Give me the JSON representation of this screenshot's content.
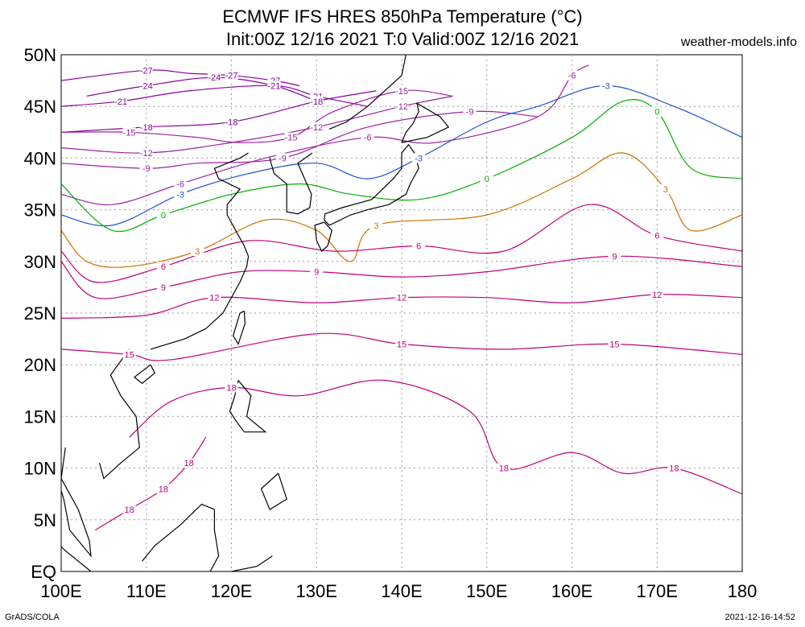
{
  "header": {
    "title_line1": "ECMWF IFS HRES 850hPa Temperature (°C)",
    "title_line2": "Init:00Z 12/16 2021 T:0 Valid:00Z 12/16 2021",
    "brand": "weather-models.info"
  },
  "footer": {
    "left": "GrADS/COLA",
    "right": "2021-12-16-14:52"
  },
  "axes": {
    "lon_ticks": [
      "100E",
      "110E",
      "120E",
      "130E",
      "140E",
      "150E",
      "160E",
      "170E",
      "180"
    ],
    "lat_ticks": [
      "EQ",
      "5N",
      "10N",
      "15N",
      "20N",
      "25N",
      "30N",
      "35N",
      "40N",
      "45N",
      "50N"
    ]
  },
  "colors": {
    "coast": "#000000",
    "grid": "#9a9a9a",
    "very_cold": "#8b00a0",
    "cold": "#a020a0",
    "minus3": "#2050d0",
    "zero": "#00b000",
    "plus3": "#d07000",
    "warm": "#c0007a"
  },
  "contours": [
    {
      "label": "-27",
      "color_key": "very_cold",
      "lat": [
        47.5,
        48.5,
        48.2,
        48.0,
        47.5,
        47.0
      ],
      "lon": [
        100,
        110,
        115,
        120,
        125,
        128
      ]
    },
    {
      "label": "-24",
      "color_key": "very_cold",
      "lat": [
        46.0,
        47.0,
        47.8,
        47.0,
        45.5
      ],
      "lon": [
        103,
        110,
        118,
        125,
        130
      ]
    },
    {
      "label": "-21",
      "color_key": "very_cold",
      "lat": [
        45.0,
        45.5,
        46.5,
        47.0,
        46.0,
        45.0
      ],
      "lon": [
        100,
        107,
        115,
        125,
        130,
        136
      ]
    },
    {
      "label": "-18",
      "color_key": "very_cold",
      "lat": [
        42.5,
        43.0,
        43.5,
        45.5,
        46.5
      ],
      "lon": [
        100,
        110,
        120,
        130,
        137
      ]
    },
    {
      "label": "-15",
      "color_key": "cold",
      "lat": [
        42.5,
        42.5,
        42.0,
        41.5,
        42.0,
        44.5,
        46.5,
        46.0
      ],
      "lon": [
        100,
        108,
        116,
        121,
        127,
        132,
        140,
        146
      ]
    },
    {
      "label": "-12",
      "color_key": "cold",
      "lat": [
        41.0,
        40.5,
        41.5,
        43.0,
        45.0,
        46.0
      ],
      "lon": [
        100,
        110,
        120,
        130,
        140,
        146
      ]
    },
    {
      "label": "-9",
      "color_key": "cold",
      "lat": [
        39.5,
        39.0,
        39.5,
        40.0,
        43.0,
        44.5,
        44.0
      ],
      "lon": [
        100,
        110,
        116,
        126,
        136,
        148,
        156
      ]
    },
    {
      "label": "-6",
      "color_key": "cold",
      "lat": [
        36.5,
        35.5,
        37.5,
        40.0,
        42.0,
        41.5,
        44.0,
        48.0,
        49.0
      ],
      "lon": [
        100,
        106,
        114,
        124,
        136,
        144,
        156,
        160,
        162
      ]
    },
    {
      "label": "-3",
      "color_key": "minus3",
      "lat": [
        34.5,
        33.5,
        36.5,
        38.5,
        39.5,
        38.0,
        40.0,
        43.5,
        45.0,
        47.0,
        45.0,
        42.0
      ],
      "lon": [
        100,
        106,
        114,
        122,
        130,
        136,
        142,
        150,
        156,
        164,
        172,
        180
      ]
    },
    {
      "label": "0",
      "color_key": "zero",
      "lat": [
        37.5,
        33.0,
        34.5,
        36.5,
        37.5,
        36.5,
        36.0,
        38.0,
        42.0,
        45.5,
        44.5,
        39.0,
        38.0
      ],
      "lon": [
        100,
        106,
        112,
        120,
        128,
        134,
        142,
        150,
        160,
        166,
        170,
        174,
        180
      ]
    },
    {
      "label": "3",
      "color_key": "plus3",
      "lat": [
        33.0,
        30.0,
        29.5,
        31.0,
        34.0,
        33.0,
        30.0,
        33.5,
        34.5,
        38.0,
        40.5,
        37.0,
        33.0,
        34.5
      ],
      "lon": [
        100,
        103,
        108,
        116,
        124,
        130,
        134,
        137,
        150,
        160,
        166,
        171,
        174,
        180
      ]
    },
    {
      "label": "6",
      "color_key": "warm",
      "lat": [
        31.0,
        28.0,
        29.5,
        32.0,
        31.0,
        31.5,
        31.0,
        35.5,
        32.5,
        31.0
      ],
      "lon": [
        100,
        104,
        112,
        122,
        132,
        142,
        152,
        162,
        170,
        180
      ]
    },
    {
      "label": "9",
      "color_key": "warm",
      "lat": [
        30.0,
        26.5,
        27.5,
        29.0,
        29.0,
        28.5,
        29.0,
        30.5,
        29.5
      ],
      "lon": [
        100,
        104,
        112,
        121,
        130,
        140,
        150,
        165,
        180
      ]
    },
    {
      "label": "12",
      "color_key": "warm",
      "lat": [
        24.5,
        24.8,
        26.5,
        26.0,
        26.5,
        26.5,
        26.0,
        26.8,
        26.5
      ],
      "lon": [
        100,
        110,
        118,
        130,
        140,
        150,
        160,
        170,
        180
      ]
    },
    {
      "label": "15",
      "color_key": "warm",
      "lat": [
        21.5,
        21.0,
        20.5,
        23.0,
        22.0,
        21.5,
        22.0,
        21.0
      ],
      "lon": [
        100,
        108,
        113,
        130,
        140,
        152,
        165,
        180
      ]
    },
    {
      "label": "18",
      "color_key": "warm",
      "lat": [
        13.0,
        16.5,
        17.8,
        17.0,
        18.5,
        15.5,
        10.0,
        11.5,
        9.5,
        10.0,
        7.5
      ],
      "lon": [
        108,
        113,
        120,
        128,
        138,
        148,
        152,
        160,
        166,
        172,
        180
      ]
    },
    {
      "label": "18",
      "color_key": "warm",
      "lat": [
        4.0,
        6.0,
        8.0,
        10.5,
        13.0
      ],
      "lon": [
        104,
        108,
        112,
        115,
        117
      ]
    }
  ],
  "coast_segments": [
    {
      "name": "china-coast",
      "lat": [
        40.5,
        40.0,
        39.0,
        38.0,
        37.0,
        35.5,
        34.5,
        33.0,
        31.5,
        30.5,
        29.5,
        28.0,
        26.5,
        25.0,
        23.5,
        22.5,
        21.5
      ],
      "lon": [
        122.0,
        121.0,
        118.0,
        118.5,
        121.0,
        119.5,
        119.5,
        120.5,
        121.5,
        122.0,
        121.8,
        121.0,
        120.0,
        119.0,
        117.0,
        114.5,
        110.5
      ]
    },
    {
      "name": "korea",
      "lat": [
        40.0,
        38.5,
        37.5,
        36.0,
        34.8,
        34.6,
        35.2,
        36.5,
        38.0,
        39.5,
        40.5
      ],
      "lon": [
        124.5,
        125.0,
        126.5,
        126.5,
        126.5,
        127.8,
        129.2,
        129.4,
        128.6,
        127.8,
        129.5
      ]
    },
    {
      "name": "russia-coast",
      "lat": [
        42.8,
        43.5,
        45.0,
        46.5,
        48.0,
        50.0
      ],
      "lon": [
        131.5,
        133.5,
        136.0,
        138.0,
        140.0,
        140.5
      ]
    },
    {
      "name": "honshu",
      "lat": [
        33.5,
        34.5,
        35.0,
        35.5,
        36.5,
        37.5,
        39.0,
        40.5,
        41.3,
        40.5,
        39.0,
        38.0,
        36.0,
        35.2,
        34.6,
        34.0,
        33.5
      ],
      "lon": [
        131.5,
        134.0,
        136.0,
        138.5,
        140.5,
        141.0,
        142.0,
        141.5,
        140.8,
        140.0,
        140.0,
        139.0,
        136.5,
        133.0,
        131.0,
        130.9,
        131.5
      ]
    },
    {
      "name": "hokkaido",
      "lat": [
        41.5,
        42.5,
        43.3,
        44.5,
        45.3,
        44.0,
        43.0,
        42.0,
        41.5
      ],
      "lon": [
        140.0,
        140.5,
        141.3,
        142.0,
        141.8,
        144.5,
        145.5,
        143.0,
        140.0
      ]
    },
    {
      "name": "kyushu",
      "lat": [
        33.8,
        33.5,
        32.0,
        31.0,
        31.5,
        33.0,
        33.8
      ],
      "lon": [
        130.9,
        129.8,
        130.0,
        130.6,
        131.3,
        131.8,
        130.9
      ]
    },
    {
      "name": "taiwan",
      "lat": [
        25.2,
        24.0,
        22.0,
        22.8,
        25.0,
        25.2
      ],
      "lon": [
        121.5,
        121.6,
        120.8,
        120.2,
        121.0,
        121.5
      ]
    },
    {
      "name": "luzon",
      "lat": [
        18.5,
        17.0,
        15.5,
        14.5,
        13.5,
        13.5,
        15.0,
        17.0,
        18.5
      ],
      "lon": [
        120.8,
        120.4,
        119.8,
        120.6,
        121.5,
        124.0,
        121.8,
        122.3,
        120.8
      ]
    },
    {
      "name": "mindanao",
      "lat": [
        9.5,
        8.0,
        6.0,
        7.0,
        9.5
      ],
      "lon": [
        125.5,
        123.5,
        124.5,
        126.5,
        125.5
      ]
    },
    {
      "name": "vietnam",
      "lat": [
        21.5,
        19.0,
        17.0,
        15.0,
        12.0,
        10.5,
        9.0,
        10.5
      ],
      "lon": [
        108.0,
        105.8,
        107.0,
        108.8,
        109.2,
        107.0,
        105.0,
        104.5
      ]
    },
    {
      "name": "hainan",
      "lat": [
        20.0,
        19.2,
        18.2,
        18.8,
        20.0
      ],
      "lon": [
        110.5,
        111.0,
        109.5,
        108.6,
        110.5
      ]
    },
    {
      "name": "malay-peninsula",
      "lat": [
        13.0,
        10.0,
        7.0,
        4.0,
        1.5,
        3.0,
        6.0,
        9.0,
        12.0
      ],
      "lon": [
        100.0,
        99.2,
        100.3,
        101.0,
        103.5,
        103.3,
        102.0,
        100.0,
        100.5
      ]
    },
    {
      "name": "borneo",
      "lat": [
        1.0,
        2.5,
        4.5,
        6.5,
        6.0,
        4.0,
        1.5,
        0.0
      ],
      "lon": [
        109.5,
        111.0,
        114.0,
        116.5,
        118.0,
        118.0,
        118.5,
        117.5
      ]
    },
    {
      "name": "sulawesi",
      "lat": [
        1.5,
        0.5,
        0.0
      ],
      "lon": [
        124.8,
        123.0,
        120.0
      ]
    },
    {
      "name": "sumatra",
      "lat": [
        5.5,
        4.0,
        2.0,
        0.0
      ],
      "lon": [
        95.5,
        98.0,
        100.5,
        103.5
      ]
    }
  ]
}
